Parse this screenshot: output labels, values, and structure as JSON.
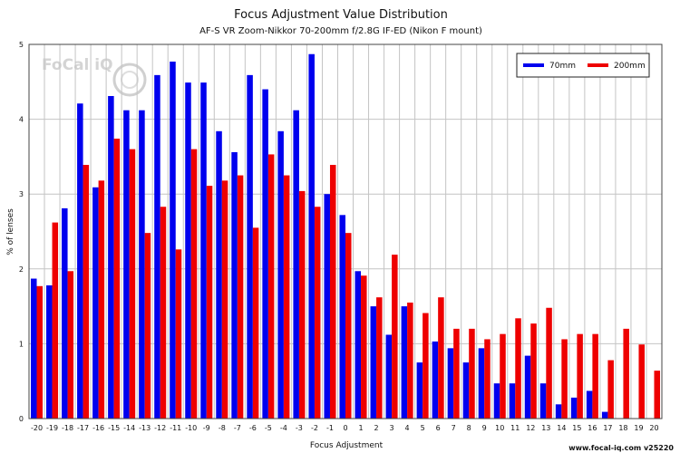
{
  "logo_text": "FoCal iQ",
  "footer": "www.focal-iq.com  v25220",
  "chart_data": {
    "type": "bar",
    "title": "Focus Adjustment Value Distribution",
    "subtitle": "AF-S VR Zoom-Nikkor 70-200mm f/2.8G IF-ED (Nikon F mount)",
    "xlabel": "Focus Adjustment",
    "ylabel": "% of lenses",
    "ylim": [
      0,
      5
    ],
    "yticks": [
      "0",
      "1",
      "2",
      "3",
      "4",
      "5"
    ],
    "grid": true,
    "legend_position": "top-right",
    "categories": [
      "-20",
      "-19",
      "-18",
      "-17",
      "-16",
      "-15",
      "-14",
      "-13",
      "-12",
      "-11",
      "-10",
      "-9",
      "-8",
      "-7",
      "-6",
      "-5",
      "-4",
      "-3",
      "-2",
      "-1",
      "0",
      "1",
      "2",
      "3",
      "4",
      "5",
      "6",
      "7",
      "8",
      "9",
      "10",
      "11",
      "12",
      "13",
      "14",
      "15",
      "16",
      "17",
      "18",
      "19",
      "20"
    ],
    "series": [
      {
        "name": "70mm",
        "color": "#0000ee",
        "values": [
          1.87,
          1.78,
          2.81,
          4.21,
          3.09,
          4.31,
          4.12,
          4.12,
          4.59,
          4.77,
          4.49,
          4.49,
          3.84,
          3.56,
          4.59,
          4.4,
          3.84,
          4.12,
          4.87,
          3.0,
          2.72,
          1.97,
          1.5,
          1.12,
          1.5,
          0.75,
          1.03,
          0.94,
          0.75,
          0.94,
          0.47,
          0.47,
          0.84,
          0.47,
          0.19,
          0.28,
          0.37,
          0.09,
          0,
          0,
          0
        ]
      },
      {
        "name": "200mm",
        "color": "#ee0000",
        "values": [
          1.77,
          2.62,
          1.97,
          3.39,
          3.18,
          3.74,
          3.6,
          2.48,
          2.83,
          2.26,
          3.6,
          3.11,
          3.18,
          3.25,
          2.55,
          3.53,
          3.25,
          3.04,
          2.83,
          3.39,
          2.48,
          1.91,
          1.62,
          2.19,
          1.55,
          1.41,
          1.62,
          1.2,
          1.2,
          1.06,
          1.13,
          1.34,
          1.27,
          1.48,
          1.06,
          1.13,
          1.13,
          0.78,
          1.2,
          0.99,
          0.64
        ]
      }
    ]
  }
}
